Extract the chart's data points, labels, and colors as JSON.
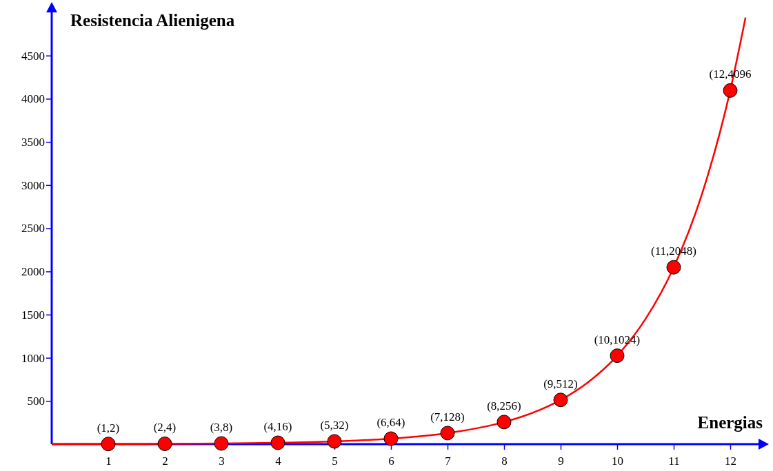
{
  "chart_data": {
    "type": "line",
    "xlabel": "Energias",
    "ylabel": "Resistencia Alienigena",
    "xlim": [
      0,
      12.5
    ],
    "ylim": [
      0,
      5000
    ],
    "xticks": [
      1,
      2,
      3,
      4,
      5,
      6,
      7,
      8,
      9,
      10,
      11,
      12
    ],
    "yticks": [
      500,
      1000,
      1500,
      2000,
      2500,
      3000,
      3500,
      4000,
      4500
    ],
    "grid": false,
    "series": [
      {
        "type": "line",
        "color": "#ff0000",
        "marker": "none",
        "x": [
          0,
          1,
          2,
          3,
          4,
          5,
          6,
          7,
          8,
          8.5,
          9,
          9.5,
          10,
          10.5,
          11,
          11.5,
          12,
          12.27
        ],
        "values": [
          1,
          2,
          4,
          8,
          16,
          32,
          64,
          128,
          256,
          362,
          512,
          724,
          1024,
          1448,
          2048,
          2896,
          4096,
          4940
        ]
      },
      {
        "type": "scatter",
        "color": "#ff0000",
        "marker": "circle",
        "x": [
          1,
          2,
          3,
          4,
          5,
          6,
          7,
          8,
          9,
          10,
          11,
          12
        ],
        "values": [
          2,
          4,
          8,
          16,
          32,
          64,
          128,
          256,
          512,
          1024,
          2048,
          4096
        ]
      }
    ],
    "annotations": [
      {
        "text": "(1,2)",
        "x": 1,
        "y": 2
      },
      {
        "text": "(2,4)",
        "x": 2,
        "y": 4
      },
      {
        "text": "(3,8)",
        "x": 3,
        "y": 8
      },
      {
        "text": "(4,16)",
        "x": 4,
        "y": 16
      },
      {
        "text": "(5,32)",
        "x": 5,
        "y": 32
      },
      {
        "text": "(6,64)",
        "x": 6,
        "y": 64
      },
      {
        "text": "(7,128)",
        "x": 7,
        "y": 128
      },
      {
        "text": "(8,256)",
        "x": 8,
        "y": 256
      },
      {
        "text": "(9,512)",
        "x": 9,
        "y": 512
      },
      {
        "text": "(10,1024)",
        "x": 10,
        "y": 1024
      },
      {
        "text": "(11,2048)",
        "x": 11,
        "y": 2048
      },
      {
        "text": "(12,4096",
        "x": 12,
        "y": 4096
      }
    ]
  }
}
